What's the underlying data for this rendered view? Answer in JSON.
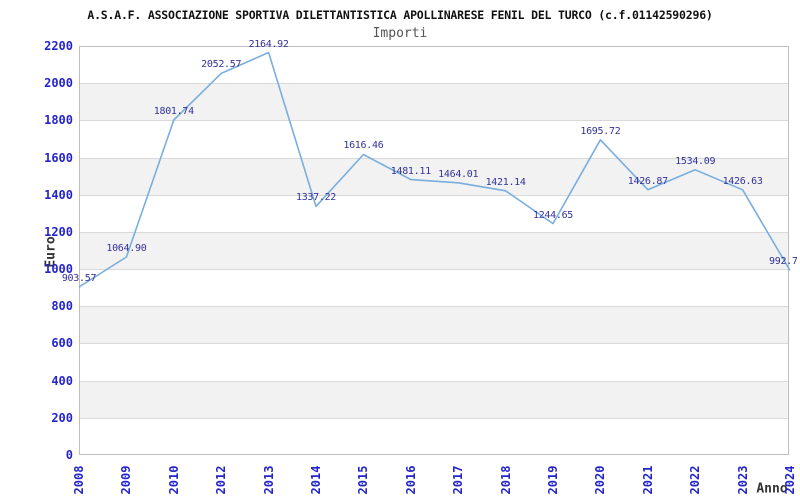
{
  "chart_data": {
    "type": "line",
    "title": "A.S.A.F. ASSOCIAZIONE SPORTIVA DILETTANTISTICA APOLLINARESE FENIL DEL TURCO (c.f.01142590296)",
    "subtitle": "Importi",
    "xlabel": "Anno",
    "ylabel": "Euro",
    "categories": [
      "2008",
      "2009",
      "2010",
      "2012",
      "2013",
      "2014",
      "2015",
      "2016",
      "2017",
      "2018",
      "2019",
      "2020",
      "2021",
      "2022",
      "2023",
      "2024"
    ],
    "values": [
      903.57,
      1064.9,
      1801.74,
      2052.57,
      2164.92,
      1337.22,
      1616.46,
      1481.11,
      1464.01,
      1421.14,
      1244.65,
      1695.72,
      1426.87,
      1534.09,
      1426.63,
      992.7
    ],
    "value_labels": [
      "903.57",
      "1064.90",
      "1801.74",
      "2052.57",
      "2164.92",
      "1337.22",
      "1616.46",
      "1481.11",
      "1464.01",
      "1421.14",
      "1244.65",
      "1695.72",
      "1426.87",
      "1534.09",
      "1426.63",
      "992.7"
    ],
    "ylim": [
      0,
      2200
    ],
    "ytick_step": 200,
    "ytick_labels": [
      "0",
      "200",
      "400",
      "600",
      "800",
      "1000",
      "1200",
      "1400",
      "1600",
      "1800",
      "2000",
      "2200"
    ],
    "grid": true,
    "banded_background": true,
    "legend": "none",
    "colors": {
      "line": "#79aede",
      "tick_label": "#2424cc",
      "value_label": "#333399",
      "band": "#f2f2f2",
      "gridline": "#d9d9d9",
      "plot_border": "#c0c0c0",
      "title": "#111111",
      "subtitle": "#555555",
      "axis_title": "#333333"
    }
  }
}
